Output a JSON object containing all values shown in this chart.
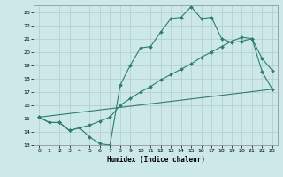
{
  "xlabel": "Humidex (Indice chaleur)",
  "bg_color": "#cce8e8",
  "grid_color": "#b0cccc",
  "line_color": "#2e7d6e",
  "xlim": [
    -0.5,
    23.5
  ],
  "ylim": [
    13,
    23.5
  ],
  "yticks": [
    13,
    14,
    15,
    16,
    17,
    18,
    19,
    20,
    21,
    22,
    23
  ],
  "xticks": [
    0,
    1,
    2,
    3,
    4,
    5,
    6,
    7,
    8,
    9,
    10,
    11,
    12,
    13,
    14,
    15,
    16,
    17,
    18,
    19,
    20,
    21,
    22,
    23
  ],
  "series1_x": [
    0,
    1,
    2,
    3,
    4,
    5,
    6,
    7,
    8,
    9,
    10,
    11,
    12,
    13,
    14,
    15,
    16,
    17,
    18,
    19,
    20,
    21,
    22,
    23
  ],
  "series1_y": [
    15.1,
    14.7,
    14.7,
    14.1,
    14.3,
    13.6,
    13.1,
    13.0,
    17.5,
    19.0,
    20.3,
    20.4,
    21.5,
    22.5,
    22.6,
    23.4,
    22.5,
    22.6,
    21.0,
    20.7,
    20.8,
    21.0,
    18.5,
    17.2
  ],
  "series2_x": [
    0,
    23
  ],
  "series2_y": [
    15.1,
    17.2
  ],
  "series3_x": [
    0,
    1,
    2,
    3,
    4,
    5,
    6,
    7,
    8,
    9,
    10,
    11,
    12,
    13,
    14,
    15,
    16,
    17,
    18,
    19,
    20,
    21,
    22,
    23
  ],
  "series3_y": [
    15.1,
    14.7,
    14.7,
    14.1,
    14.3,
    14.5,
    14.8,
    15.1,
    16.0,
    16.5,
    17.0,
    17.4,
    17.9,
    18.3,
    18.7,
    19.1,
    19.6,
    20.0,
    20.4,
    20.8,
    21.1,
    21.0,
    19.5,
    18.6
  ]
}
